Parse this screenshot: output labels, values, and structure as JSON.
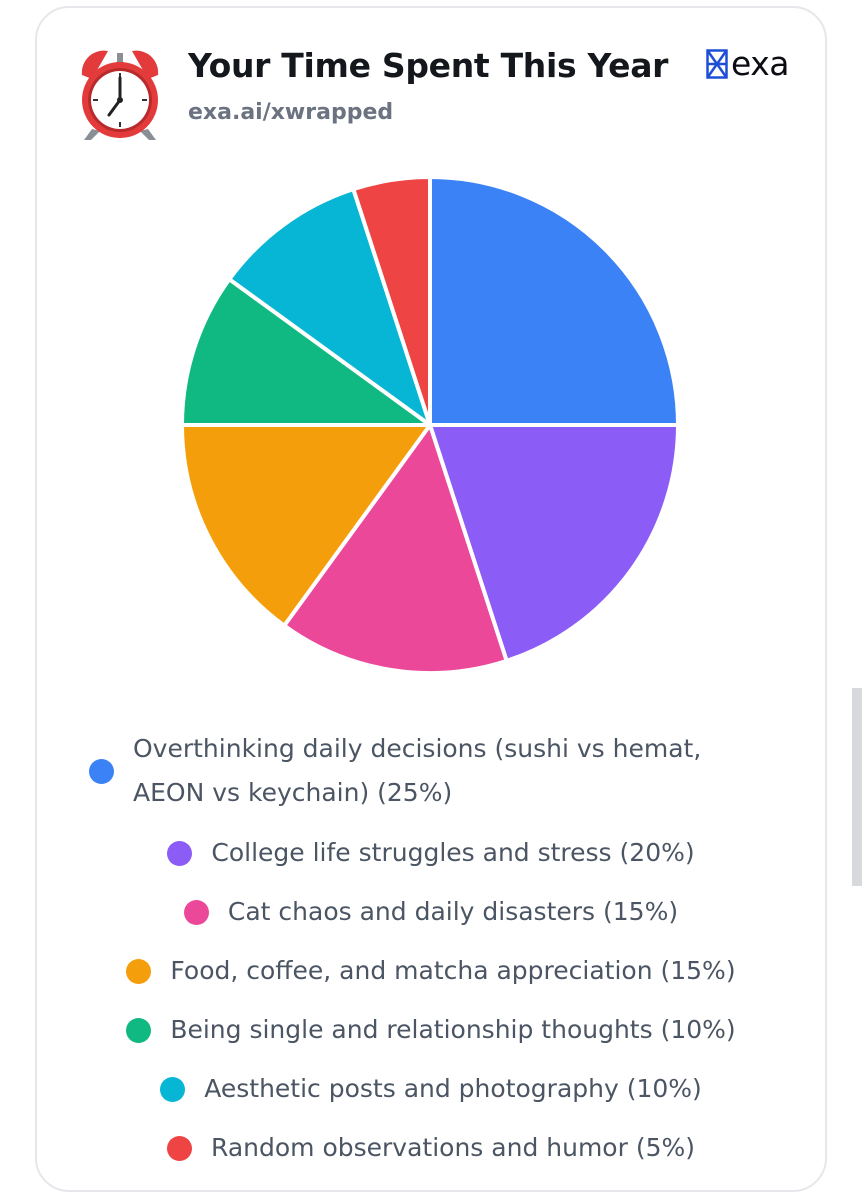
{
  "header": {
    "title": "Your Time Spent This Year",
    "subtitle": "exa.ai/xwrapped",
    "brand": "exa",
    "icon": "alarm-clock-icon"
  },
  "chart_data": {
    "type": "pie",
    "title": "Your Time Spent This Year",
    "legend_position": "bottom",
    "categories": [
      "Overthinking daily decisions (sushi vs hemat, AEON vs keychain)",
      "College life struggles and stress",
      "Cat chaos and daily disasters",
      "Food, coffee, and matcha appreciation",
      "Being single and relationship thoughts",
      "Aesthetic posts and photography",
      "Random observations and humor"
    ],
    "values": [
      25,
      20,
      15,
      15,
      10,
      10,
      5
    ],
    "colors": [
      "#3b82f6",
      "#8b5cf6",
      "#ec4899",
      "#f59e0b",
      "#10b981",
      "#06b6d4",
      "#ef4444"
    ],
    "legend_labels": [
      "Overthinking daily decisions (sushi vs hemat, AEON vs keychain) (25%)",
      "College life struggles and stress (20%)",
      "Cat chaos and daily disasters (15%)",
      "Food, coffee, and matcha appreciation (15%)",
      "Being single and relationship thoughts (10%)",
      "Aesthetic posts and photography (10%)",
      "Random observations and humor (5%)"
    ]
  }
}
